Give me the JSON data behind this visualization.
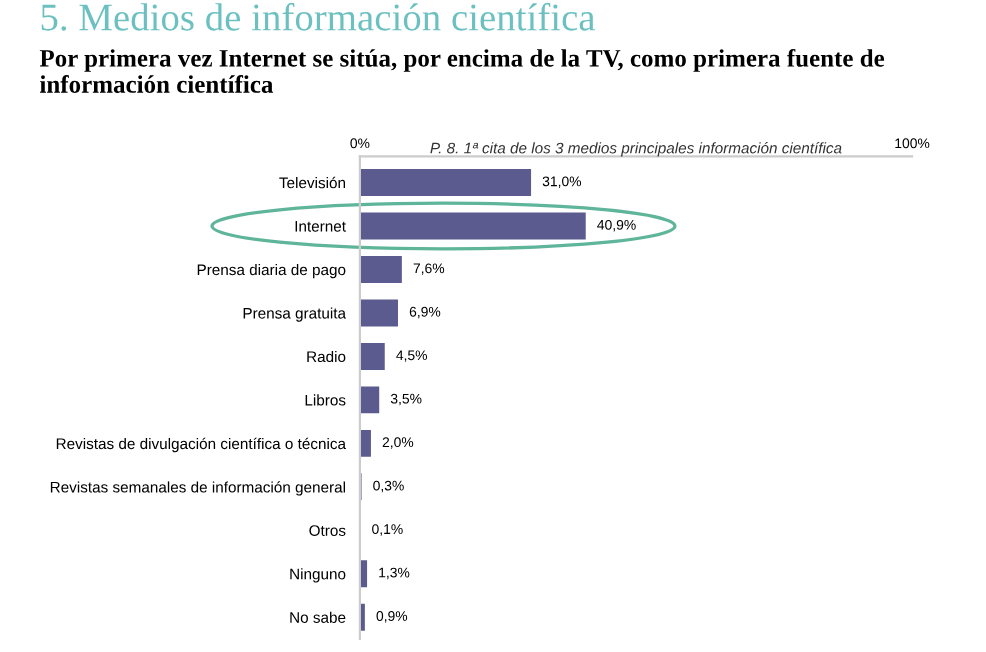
{
  "chart_data": {
    "type": "bar",
    "orientation": "horizontal",
    "title": "5. Medios de información científica",
    "subtitle": "Por primera vez Internet se sitúa, por encima de la TV, como primera fuente de información científica",
    "xlabel": "P. 8. 1ª cita de los 3 medios principales información científica",
    "categories": [
      "Televisión",
      "Internet",
      "Prensa diaria de pago",
      "Prensa gratuita",
      "Radio",
      "Libros",
      "Revistas de divulgación científica o técnica",
      "Revistas semanales de información general",
      "Otros",
      "Ninguno",
      "No sabe"
    ],
    "values": [
      31.0,
      40.9,
      7.6,
      6.9,
      4.5,
      3.5,
      2.0,
      0.3,
      0.1,
      1.3,
      0.9
    ],
    "value_labels": [
      "31,0%",
      "40,9%",
      "7,6%",
      "6,9%",
      "4,5%",
      "3,5%",
      "2,0%",
      "0,3%",
      "0,1%",
      "1,3%",
      "0,9%"
    ],
    "color": "#5b5b8f",
    "xlim": [
      0,
      100
    ],
    "xticks": [
      {
        "value": 0,
        "label": "0%"
      },
      {
        "value": 100,
        "label": "100%"
      }
    ],
    "grid": false,
    "legend": false
  }
}
